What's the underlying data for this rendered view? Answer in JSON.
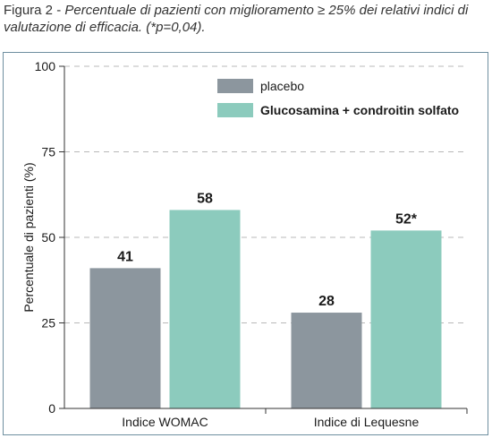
{
  "caption": {
    "label": "Figura 2",
    "separator": "-",
    "text": "Percentuale di pazienti con miglioramento ≥ 25% dei relativi indici di valutazione di efficacia. (*p=0,04)."
  },
  "chart_data": {
    "type": "bar",
    "title": "",
    "xlabel": "",
    "ylabel": "Percentuale di pazienti (%)",
    "ylim": [
      0,
      100
    ],
    "yticks": [
      0,
      25,
      50,
      75,
      100
    ],
    "ytick_labels": [
      "0",
      "25",
      "50",
      "75",
      "100"
    ],
    "categories": [
      "Indice WOMAC",
      "Indice di Lequesne"
    ],
    "series": [
      {
        "name": "placebo",
        "color": "#8c969e",
        "values": [
          41,
          28
        ],
        "labels": [
          "41",
          "28"
        ]
      },
      {
        "name": "Glucosamina + condroitin solfato",
        "color": "#8ccbbd",
        "values": [
          58,
          52
        ],
        "labels": [
          "58",
          "52*"
        ]
      }
    ],
    "grid": "horizontal dashed",
    "legend_position": "top-right"
  }
}
